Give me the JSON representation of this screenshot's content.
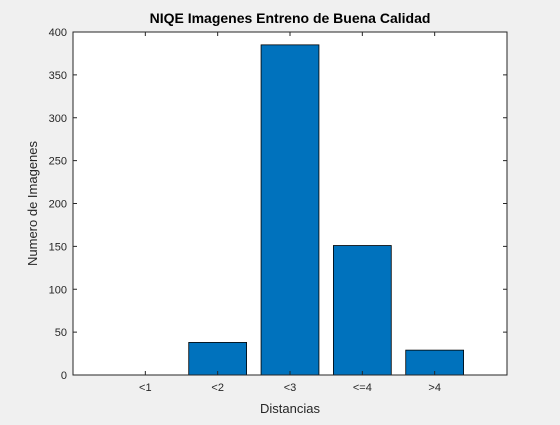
{
  "chart_data": {
    "type": "bar",
    "title": "NIQE Imagenes Entreno de Buena Calidad",
    "xlabel": "Distancias",
    "ylabel": "Numero de Imagenes",
    "categories": [
      "<1",
      "<2",
      "<3",
      "<=4",
      ">4"
    ],
    "values": [
      0,
      38,
      385,
      151,
      29
    ],
    "ylim": [
      0,
      400
    ],
    "yticks": [
      0,
      50,
      100,
      150,
      200,
      250,
      300,
      350,
      400
    ],
    "xlim": [
      0,
      6
    ],
    "grid": false,
    "legend": "none",
    "colors": {
      "bar_fill": "#0072bd",
      "bar_edge": "#000000",
      "axes_background": "#ffffff",
      "figure_background": "#f0f0f0",
      "axis_line": "#262626"
    }
  }
}
